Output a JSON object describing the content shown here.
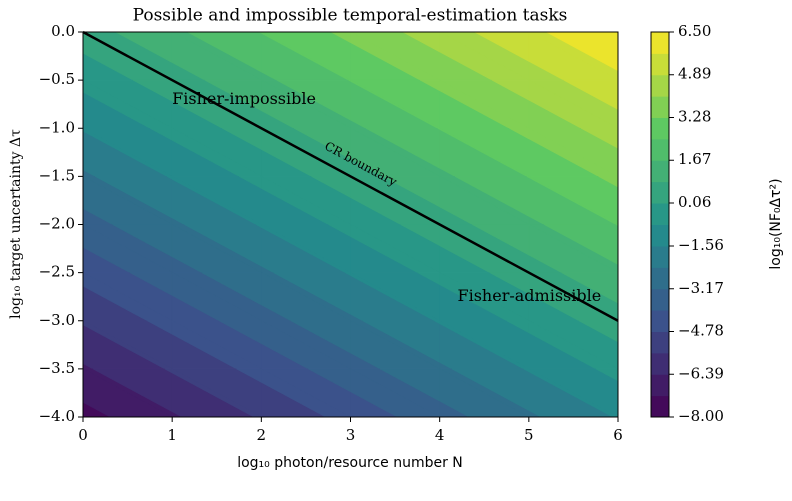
{
  "chart_data": {
    "type": "contourf",
    "title": "Possible and impossible temporal-estimation tasks",
    "x_label": "log₁₀ photon/resource number N",
    "y_label": "log₁₀ target uncertainty Δτ",
    "colorbar_label": "log₁₀(NF₀Δτ²)",
    "colormap": "viridis",
    "x": [
      0,
      1,
      2,
      3,
      4,
      5,
      6
    ],
    "y": [
      0,
      -0.5,
      -1,
      -1.5,
      -2,
      -2.5,
      -3,
      -3.5,
      -4
    ],
    "z": [
      [
        0.5,
        1.5,
        2.5,
        3.5,
        4.5,
        5.5,
        6.5
      ],
      [
        -0.5,
        0.5,
        1.5,
        2.5,
        3.5,
        4.5,
        5.5
      ],
      [
        -1.5,
        -0.5,
        0.5,
        1.5,
        2.5,
        3.5,
        4.5
      ],
      [
        -2.5,
        -1.5,
        -0.5,
        0.5,
        1.5,
        2.5,
        3.5
      ],
      [
        -3.5,
        -2.5,
        -1.5,
        -0.5,
        0.5,
        1.5,
        2.5
      ],
      [
        -4.5,
        -3.5,
        -2.5,
        -1.5,
        -0.5,
        0.5,
        1.5
      ],
      [
        -5.5,
        -4.5,
        -3.5,
        -2.5,
        -1.5,
        -0.5,
        0.5
      ],
      [
        -6.5,
        -5.5,
        -4.5,
        -3.5,
        -2.5,
        -1.5,
        -0.5
      ],
      [
        -7.5,
        -6.5,
        -5.5,
        -4.5,
        -3.5,
        -2.5,
        -1.5
      ]
    ],
    "xlim": [
      0,
      6
    ],
    "ylim": [
      -4,
      0
    ],
    "xticks": [
      0,
      1,
      2,
      3,
      4,
      5,
      6
    ],
    "yticks": [
      {
        "value": 0,
        "label": "0.0"
      },
      {
        "value": -0.5,
        "label": "−0.5"
      },
      {
        "value": -1,
        "label": "−1.0"
      },
      {
        "value": -1.5,
        "label": "−1.5"
      },
      {
        "value": -2,
        "label": "−2.0"
      },
      {
        "value": -2.5,
        "label": "−2.5"
      },
      {
        "value": -3,
        "label": "−3.0"
      },
      {
        "value": -3.5,
        "label": "−3.5"
      },
      {
        "value": -4,
        "label": "−4.0"
      }
    ],
    "zlim": [
      -8,
      6.5
    ],
    "colorbar_ticks": [
      {
        "value": 6.5,
        "label": "6.50"
      },
      {
        "value": 4.89,
        "label": "4.89"
      },
      {
        "value": 3.28,
        "label": "3.28"
      },
      {
        "value": 1.67,
        "label": "1.67"
      },
      {
        "value": 0.06,
        "label": "0.06"
      },
      {
        "value": -1.56,
        "label": "−1.56"
      },
      {
        "value": -3.17,
        "label": "−3.17"
      },
      {
        "value": -4.78,
        "label": "−4.78"
      },
      {
        "value": -6.39,
        "label": "−6.39"
      },
      {
        "value": -8,
        "label": "−8.00"
      }
    ],
    "boundary": {
      "label": "CR boundary",
      "x": [
        0,
        6
      ],
      "y": [
        0,
        -3
      ],
      "color": "#000000"
    },
    "annotations": [
      {
        "text": "Fisher-impossible",
        "x": 1,
        "y": -0.7
      },
      {
        "text": "Fisher-admissible",
        "x": 4.2,
        "y": -2.75
      }
    ]
  }
}
